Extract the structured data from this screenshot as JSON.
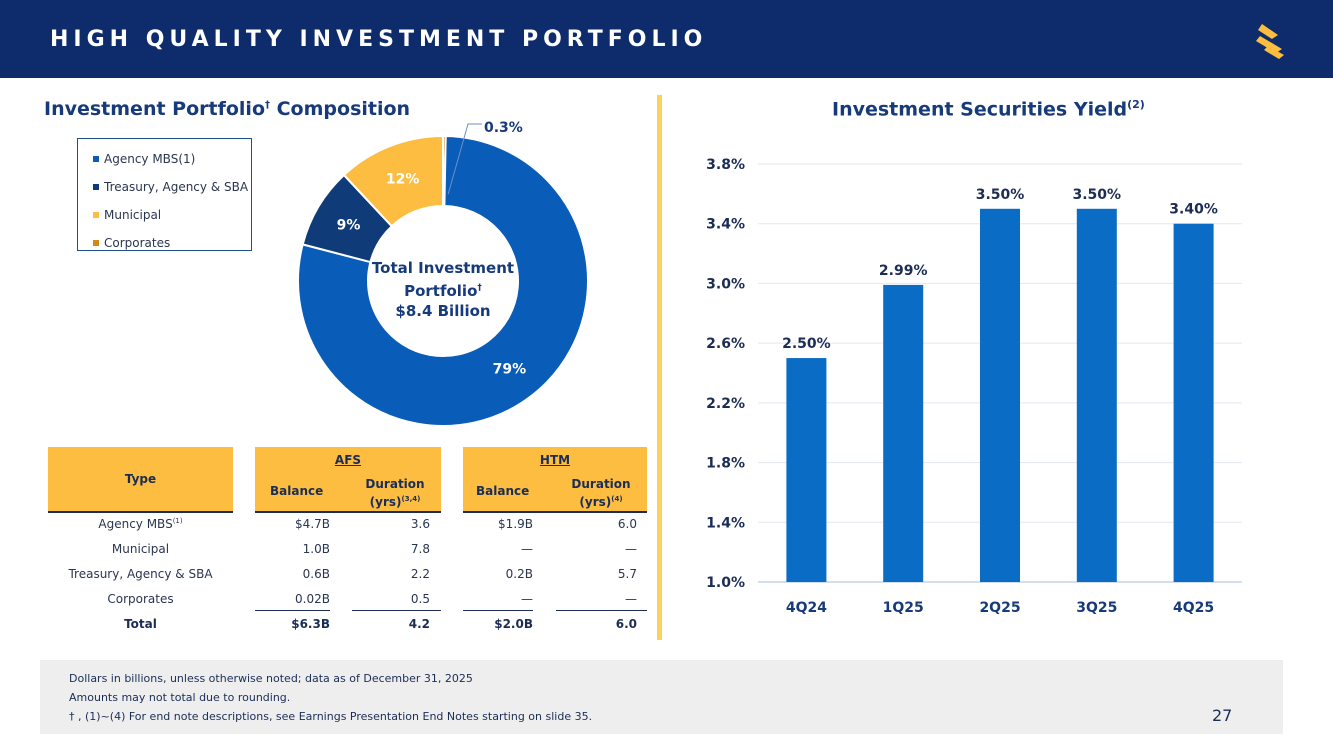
{
  "header": {
    "title": "HIGH QUALITY INVESTMENT PORTFOLIO"
  },
  "left": {
    "title_main": "Investment Portfolio",
    "title_sup": "†",
    "title_rest": " Composition",
    "center_line1": "Total Investment",
    "center_line2": "Portfolio",
    "center_sup": "†",
    "center_line3": "$8.4 Billion"
  },
  "right": {
    "title_main": "Investment Securities Yield",
    "title_sup": "(2)"
  },
  "colors": {
    "agency": "#0a5cb9",
    "treasury": "#0f3b78",
    "municipal": "#fcbd41",
    "corporates": "#d08a17",
    "bar": "#0a6cc4"
  },
  "legend": [
    {
      "label": "Agency MBS(1)",
      "color": "#0a5cb9"
    },
    {
      "label": "Treasury, Agency & SBA",
      "color": "#0f3b78"
    },
    {
      "label": "Municipal",
      "color": "#fcbd41"
    },
    {
      "label": "Corporates",
      "color": "#d08a17"
    }
  ],
  "table": {
    "type_header": "Type",
    "afs_header": "AFS",
    "htm_header": "HTM",
    "balance_header": "Balance",
    "duration_header_1": "Duration",
    "duration_header_2": "(yrs)",
    "afs_duration_sup": "(3,4)",
    "htm_duration_sup": "(4)",
    "rows": [
      {
        "type": "Agency MBS",
        "sup": "(1)",
        "afs_balance": "$4.7B",
        "afs_duration": "3.6",
        "htm_balance": "$1.9B",
        "htm_duration": "6.0"
      },
      {
        "type": "Municipal",
        "sup": "",
        "afs_balance": "1.0B",
        "afs_duration": "7.8",
        "htm_balance": "—",
        "htm_duration": "—"
      },
      {
        "type": "Treasury, Agency & SBA",
        "sup": "",
        "afs_balance": "0.6B",
        "afs_duration": "2.2",
        "htm_balance": "0.2B",
        "htm_duration": "5.7"
      },
      {
        "type": "Corporates",
        "sup": "",
        "afs_balance": "0.02B",
        "afs_duration": "0.5",
        "htm_balance": "—",
        "htm_duration": "—"
      }
    ],
    "total": {
      "type": "Total",
      "afs_balance": "$6.3B",
      "afs_duration": "4.2",
      "htm_balance": "$2.0B",
      "htm_duration": "6.0"
    }
  },
  "footer": {
    "line1": "Dollars in billions, unless otherwise noted; data as of December 31, 2025",
    "line2": "Amounts may not total due to rounding.",
    "line3": "† , (1)~(4)  For end note descriptions, see Earnings Presentation End Notes starting on slide 35.",
    "page": "27"
  },
  "chart_data": [
    {
      "type": "pie",
      "title": "Investment Portfolio† Composition",
      "categories": [
        "Agency MBS(1)",
        "Treasury, Agency & SBA",
        "Municipal",
        "Corporates"
      ],
      "values": [
        79,
        9,
        12,
        0.3
      ],
      "value_labels": [
        "79%",
        "9%",
        "12%",
        "0.3%"
      ],
      "center_text": "Total Investment Portfolio† $8.4 Billion"
    },
    {
      "type": "bar",
      "title": "Investment Securities Yield(2)",
      "categories": [
        "4Q24",
        "1Q25",
        "2Q25",
        "3Q25",
        "4Q25"
      ],
      "values": [
        2.5,
        2.99,
        3.5,
        3.5,
        3.4
      ],
      "value_labels": [
        "2.50%",
        "2.99%",
        "3.50%",
        "3.50%",
        "3.40%"
      ],
      "ylim": [
        1.0,
        3.8
      ],
      "yticks": [
        1.0,
        1.4,
        1.8,
        2.2,
        2.6,
        3.0,
        3.4,
        3.8
      ],
      "ytick_labels": [
        "1.0%",
        "1.4%",
        "1.8%",
        "2.2%",
        "2.6%",
        "3.0%",
        "3.4%",
        "3.8%"
      ],
      "grid": true
    }
  ]
}
